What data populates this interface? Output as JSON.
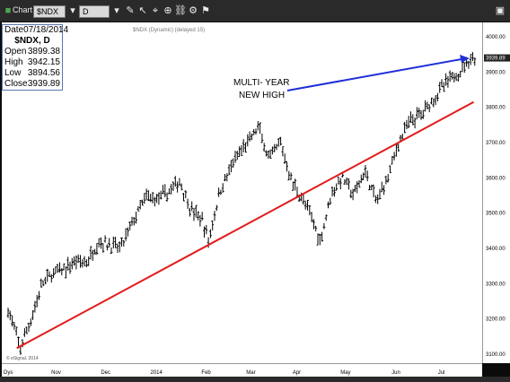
{
  "titlebar": {
    "app_title": "Chart",
    "symbol_value": "$NDX",
    "interval_value": "D"
  },
  "chart_header": "$NDX (Dynamic) (delayed 15)",
  "infobox": {
    "date_label": "Date",
    "date_value": "07/18/2014",
    "title": "$NDX, D",
    "rows": [
      {
        "label": "Open",
        "value": "3899.38"
      },
      {
        "label": "High",
        "value": "3942.15"
      },
      {
        "label": "Low",
        "value": "3894.56"
      },
      {
        "label": "Close",
        "value": "3939.89"
      }
    ]
  },
  "annotation": {
    "line1": "MULTI- YEAR",
    "line2": "NEW HIGH"
  },
  "watermark": "© eSignal, 2014",
  "x_axis_corner": "Dys",
  "colors": {
    "trendline": "#e31b1b",
    "arrow": "#1f2fd8",
    "bars": "#000000",
    "price_tag": "#222222"
  },
  "chart_data": {
    "type": "ohlc",
    "title": "$NDX, D",
    "y_ticks": [
      3100,
      3200,
      3300,
      3400,
      3500,
      3600,
      3700,
      3800,
      3900,
      4000
    ],
    "ylim": [
      3090,
      4010
    ],
    "x_ticks": [
      "Nov",
      "Dec",
      "2014",
      "Feb",
      "Mar",
      "Apr",
      "May",
      "Jun",
      "Jul"
    ],
    "x_tick_dates": [
      "2013-11-01",
      "2013-12-02",
      "2014-01-02",
      "2014-02-03",
      "2014-03-03",
      "2014-04-01",
      "2014-05-01",
      "2014-06-02",
      "2014-07-01"
    ],
    "last_price_label": "3939.89",
    "series": [
      {
        "name": "$NDX",
        "type": "ohlc",
        "points": [
          [
            "2013-10-02",
            3225
          ],
          [
            "2013-10-09",
            3115
          ],
          [
            "2013-10-16",
            3200
          ],
          [
            "2013-10-23",
            3300
          ],
          [
            "2013-10-30",
            3330
          ],
          [
            "2013-11-06",
            3340
          ],
          [
            "2013-11-13",
            3365
          ],
          [
            "2013-11-20",
            3360
          ],
          [
            "2013-11-27",
            3420
          ],
          [
            "2013-12-04",
            3410
          ],
          [
            "2013-12-11",
            3400
          ],
          [
            "2013-12-18",
            3470
          ],
          [
            "2013-12-27",
            3545
          ],
          [
            "2014-01-03",
            3540
          ],
          [
            "2014-01-10",
            3560
          ],
          [
            "2014-01-17",
            3590
          ],
          [
            "2014-01-24",
            3510
          ],
          [
            "2014-01-31",
            3480
          ],
          [
            "2014-02-04",
            3420
          ],
          [
            "2014-02-11",
            3560
          ],
          [
            "2014-02-18",
            3630
          ],
          [
            "2014-02-25",
            3680
          ],
          [
            "2014-03-04",
            3720
          ],
          [
            "2014-03-07",
            3745
          ],
          [
            "2014-03-14",
            3650
          ],
          [
            "2014-03-21",
            3700
          ],
          [
            "2014-03-28",
            3590
          ],
          [
            "2014-04-04",
            3540
          ],
          [
            "2014-04-11",
            3470
          ],
          [
            "2014-04-15",
            3420
          ],
          [
            "2014-04-22",
            3560
          ],
          [
            "2014-04-29",
            3600
          ],
          [
            "2014-05-06",
            3550
          ],
          [
            "2014-05-13",
            3620
          ],
          [
            "2014-05-20",
            3530
          ],
          [
            "2014-05-27",
            3600
          ],
          [
            "2014-06-03",
            3700
          ],
          [
            "2014-06-10",
            3760
          ],
          [
            "2014-06-17",
            3780
          ],
          [
            "2014-06-24",
            3820
          ],
          [
            "2014-07-01",
            3860
          ],
          [
            "2014-07-08",
            3890
          ],
          [
            "2014-07-11",
            3900
          ],
          [
            "2014-07-18",
            3940
          ]
        ]
      }
    ],
    "trendline": {
      "from": [
        "2013-10-07",
        3117
      ],
      "to": [
        "2014-07-20",
        3815
      ]
    }
  }
}
